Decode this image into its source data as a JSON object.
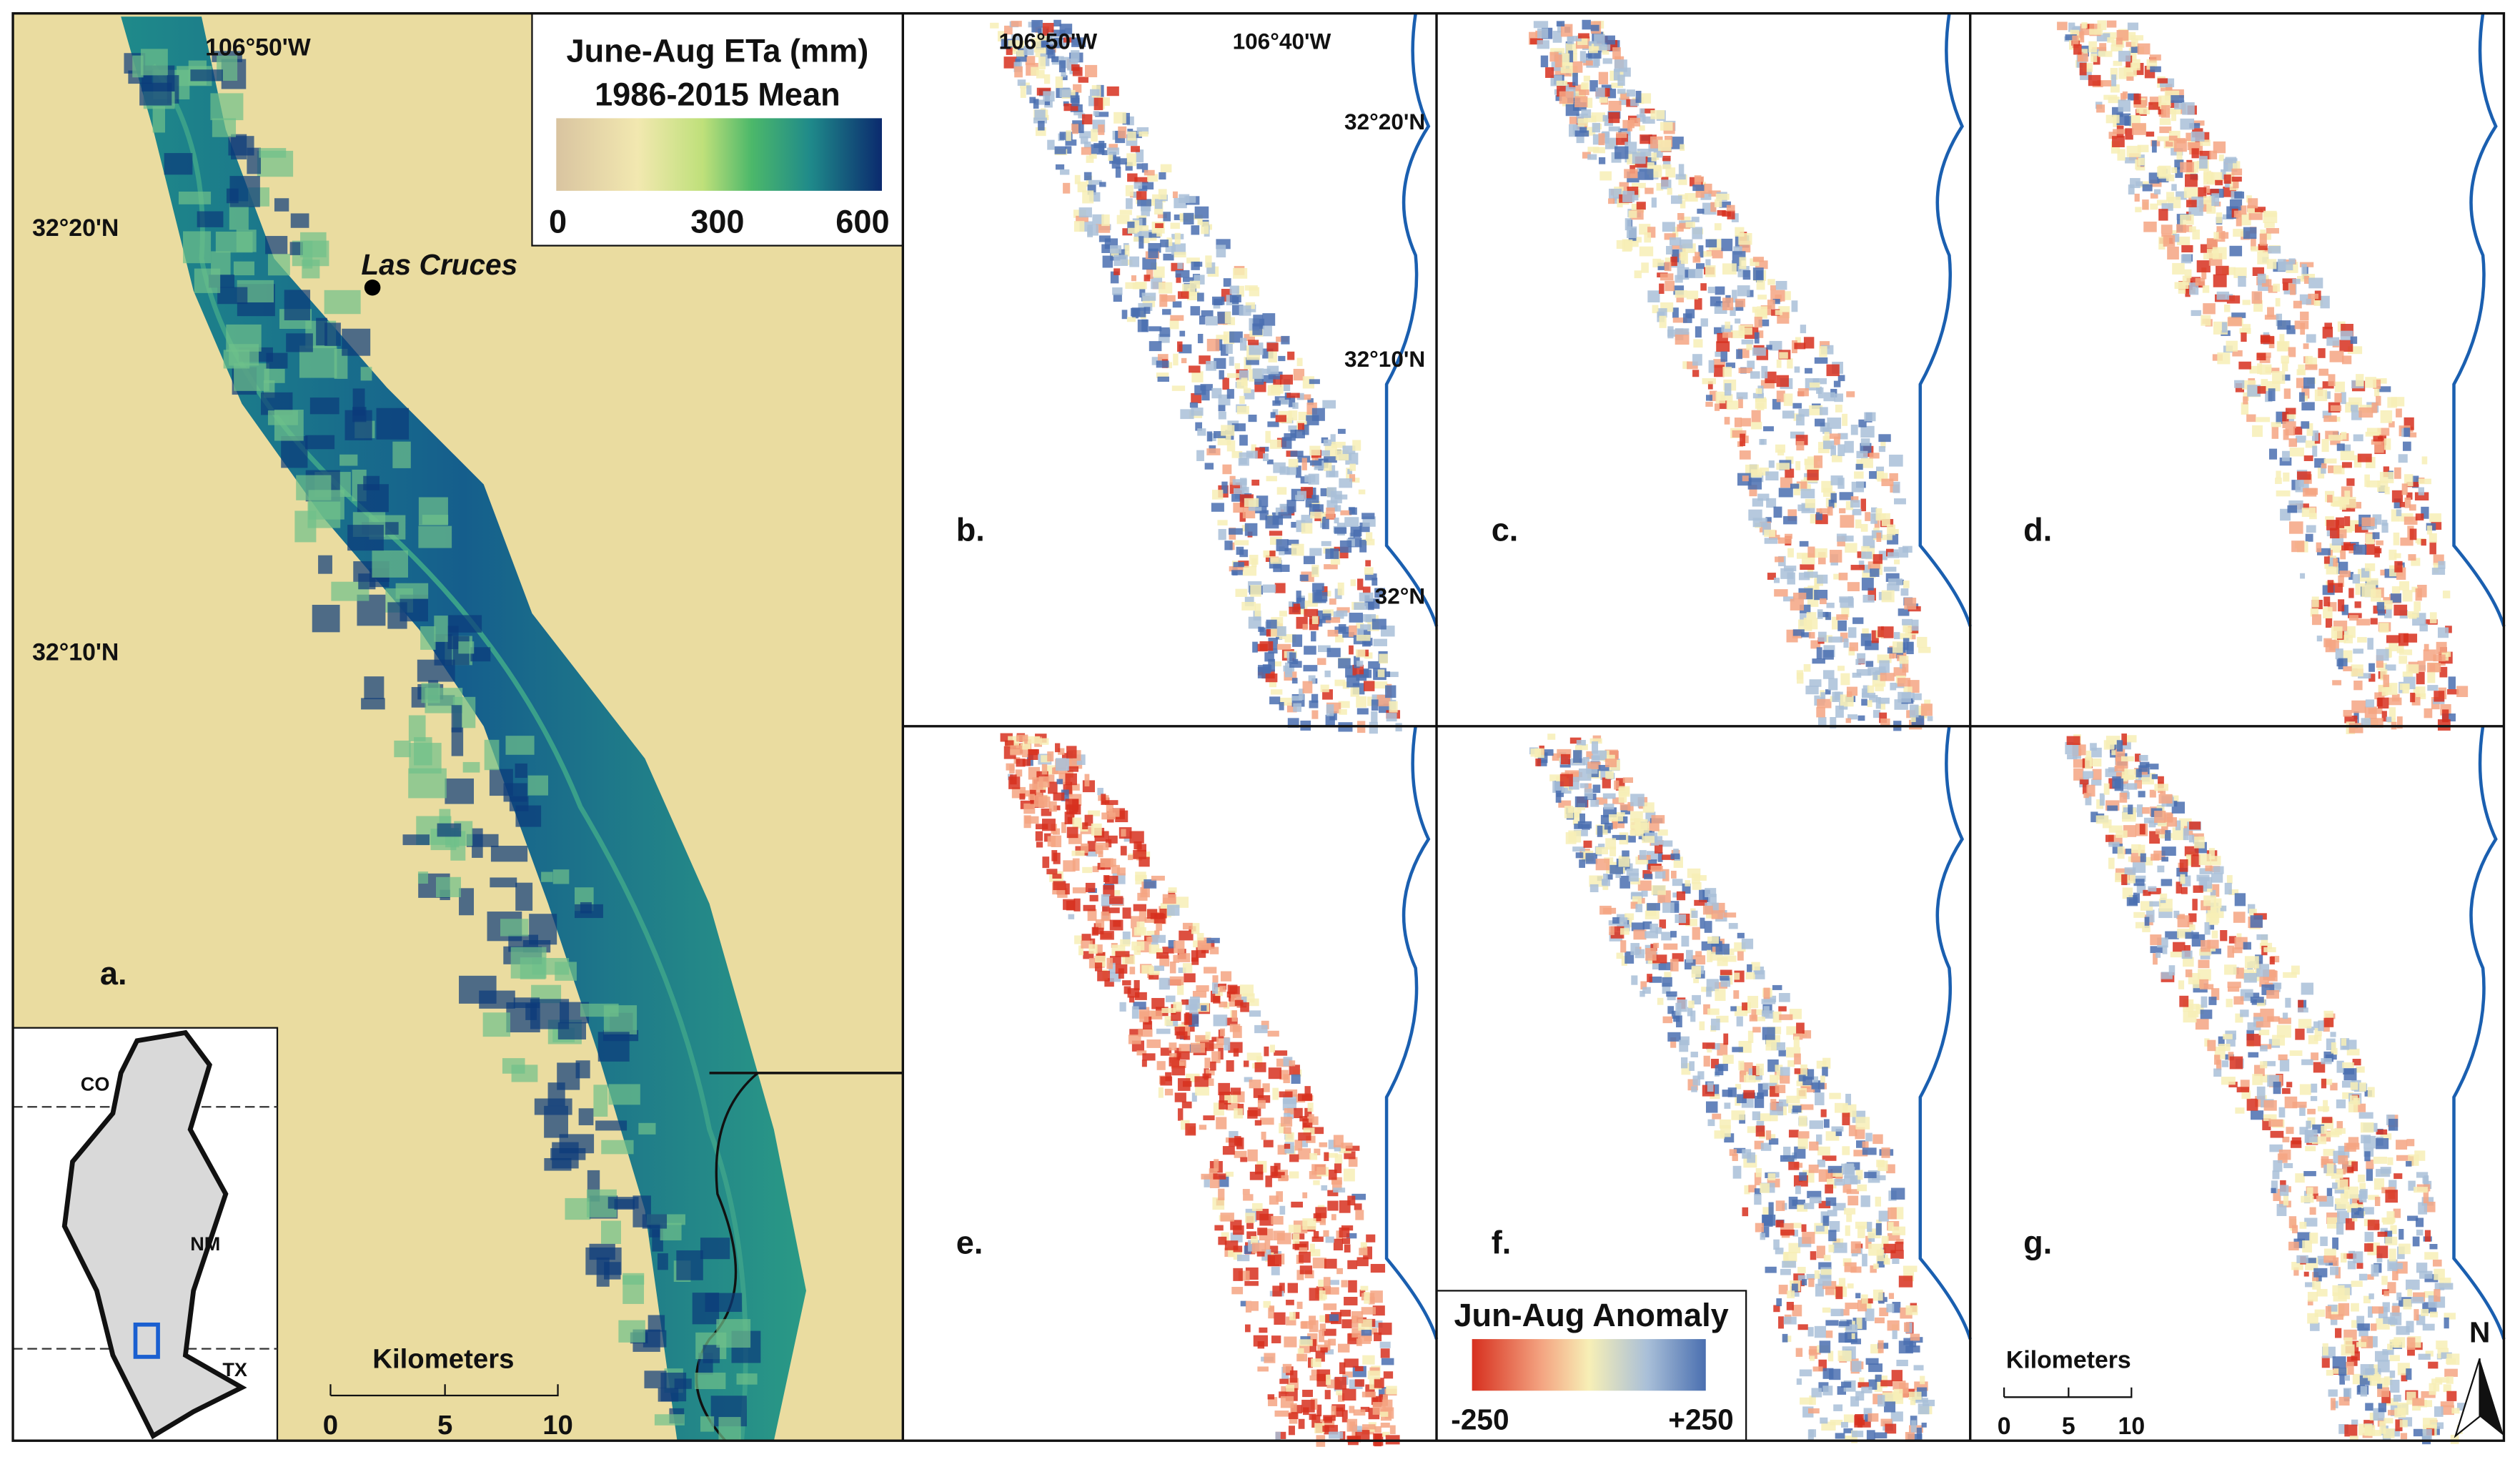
{
  "panels": [
    "a.",
    "b.",
    "c.",
    "d.",
    "e.",
    "f.",
    "g."
  ],
  "panel_a": {
    "lon_label": "106°50'W",
    "lat_labels": [
      "32°20'N",
      "32°10'N"
    ],
    "place": "Las Cruces"
  },
  "legend_mean": {
    "title": "June-Aug ETa (mm)",
    "subtitle": "1986-2015 Mean",
    "ticks": [
      "0",
      "300",
      "600"
    ]
  },
  "panel_b": {
    "lon_labels": [
      "106°50'W",
      "106°40'W"
    ],
    "lat_labels": [
      "32°20'N",
      "32°10'N",
      "32°N"
    ]
  },
  "legend_anomaly": {
    "title": "Jun-Aug Anomaly",
    "ticks": [
      "-250",
      "+250"
    ]
  },
  "inset": {
    "states": [
      "CO",
      "NM",
      "TX"
    ]
  },
  "scalebars": [
    {
      "title": "Kilometers",
      "ticks": [
        "0",
        "5",
        "10"
      ]
    },
    {
      "title": "Kilometers",
      "ticks": [
        "0",
        "5",
        "10"
      ]
    }
  ],
  "north": "N"
}
